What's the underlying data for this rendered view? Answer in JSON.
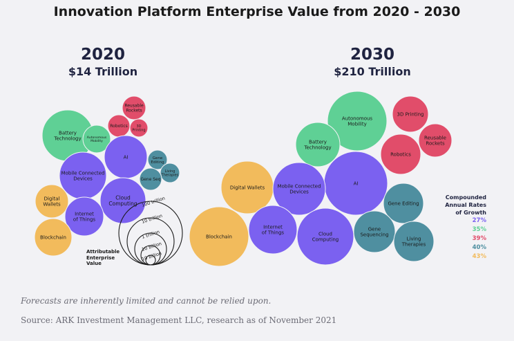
{
  "chart_data": {
    "type": "bubble",
    "title": "Innovation Platform Enterprise Value from 2020 - 2030",
    "panels": [
      {
        "year": "2020",
        "total": "$14 Trillion",
        "bubbles": [
          {
            "label": "Battery\nTechnology",
            "platform": "energy"
          },
          {
            "label": "Autonomous\nMobility",
            "platform": "energy"
          },
          {
            "label": "Reusable\nRockets",
            "platform": "robotics"
          },
          {
            "label": "Robotics",
            "platform": "robotics"
          },
          {
            "label": "3D\nPrinting",
            "platform": "robotics"
          },
          {
            "label": "AI",
            "platform": "ai"
          },
          {
            "label": "Gene\nEditing",
            "platform": "genomics"
          },
          {
            "label": "Mobile Connected\nDevices",
            "platform": "ai"
          },
          {
            "label": "Living\nTherapies",
            "platform": "genomics"
          },
          {
            "label": "Gene Seq",
            "platform": "genomics"
          },
          {
            "label": "Digital\nWallets",
            "platform": "blockchain"
          },
          {
            "label": "Cloud\nComputing",
            "platform": "ai"
          },
          {
            "label": "Internet\nof Things",
            "platform": "ai"
          },
          {
            "label": "Blockchain",
            "platform": "blockchain"
          }
        ]
      },
      {
        "year": "2030",
        "total": "$210 Trillion",
        "bubbles": [
          {
            "label": "Autonomous\nMobility",
            "platform": "energy"
          },
          {
            "label": "3D Printing",
            "platform": "robotics"
          },
          {
            "label": "Battery\nTechnology",
            "platform": "energy"
          },
          {
            "label": "Reusable\nRockets",
            "platform": "robotics"
          },
          {
            "label": "Robotics",
            "platform": "robotics"
          },
          {
            "label": "AI",
            "platform": "ai"
          },
          {
            "label": "Digital Wallets",
            "platform": "blockchain"
          },
          {
            "label": "Mobile Connected\nDevices",
            "platform": "ai"
          },
          {
            "label": "Gene Editing",
            "platform": "genomics"
          },
          {
            "label": "Blockchain",
            "platform": "blockchain"
          },
          {
            "label": "Internet\nof Things",
            "platform": "ai"
          },
          {
            "label": "Cloud\nComputing",
            "platform": "ai"
          },
          {
            "label": "Gene\nSequencing",
            "platform": "genomics"
          },
          {
            "label": "Living\nTherapies",
            "platform": "genomics"
          }
        ]
      }
    ],
    "scale": {
      "label": "Attributable\nEnterprise\nValue",
      "rings": [
        "100 trillion",
        "10 trillion",
        "1 trillion",
        "10 billion",
        "10 billion"
      ]
    },
    "legend": {
      "title": "Compounded\nAnnual Rates\nof Growth",
      "items": [
        {
          "platform": "ai",
          "value": "27%",
          "color": "#7b61f0"
        },
        {
          "platform": "energy",
          "value": "35%",
          "color": "#5fd095"
        },
        {
          "platform": "robotics",
          "value": "39%",
          "color": "#e14d6a"
        },
        {
          "platform": "genomics",
          "value": "40%",
          "color": "#4f8fa0"
        },
        {
          "platform": "blockchain",
          "value": "43%",
          "color": "#f2bb5c"
        }
      ]
    }
  },
  "footer": {
    "note": "Forecasts are inherently limited and cannot be relied upon.",
    "source": "Source: ARK Investment Management LLC, research as of November 2021"
  }
}
